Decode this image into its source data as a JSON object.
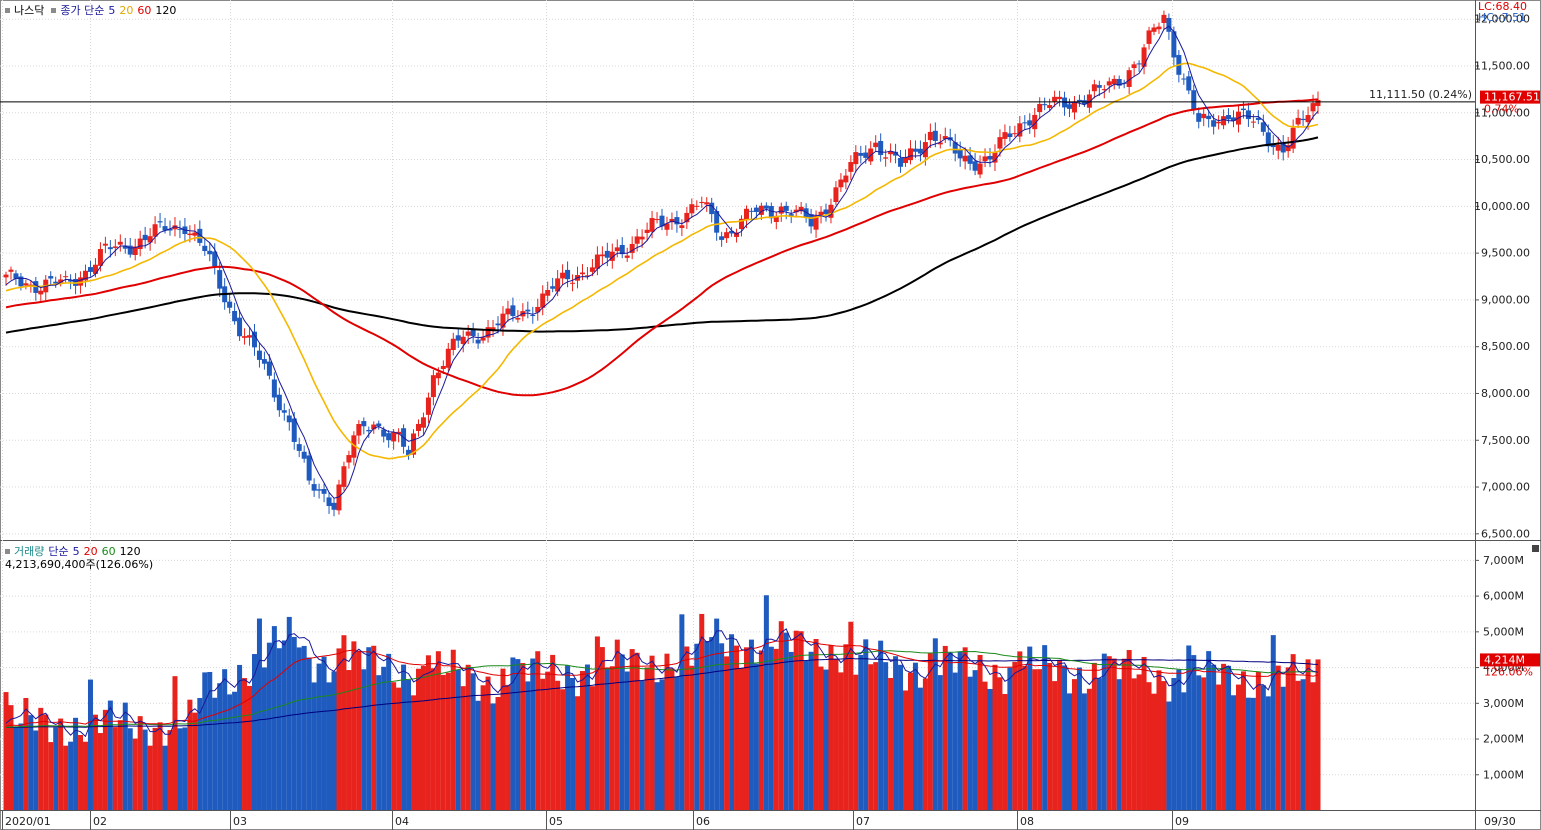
{
  "price_legend": {
    "symbol": "나스닥",
    "desc": "종가 단순",
    "p1": "5",
    "p2": "20",
    "p3": "60",
    "p4": "120"
  },
  "volume_legend": {
    "label": "거래량",
    "desc": "단순",
    "p1": "5",
    "p2": "20",
    "p3": "60",
    "p4": "120",
    "info": "4,213,690,400주(126.06%)"
  },
  "corner": {
    "lc": "LC:68.40",
    "hc": "HC:-7.51"
  },
  "right_end_label": "09/30",
  "colors": {
    "up": "#e8221c",
    "down": "#1f5bbf",
    "ma5": "#1a1a9c",
    "ma20": "#f5b800",
    "ma60": "#e00000",
    "ma120": "#000000",
    "vma5": "#1a1a9c",
    "vma20": "#e00000",
    "vma60": "#1a8a1a",
    "vma120": "#000080"
  },
  "chart_data": [
    {
      "type": "candlestick",
      "title": "나스닥",
      "y_ticks": [
        "12,000.00",
        "11,500.00",
        "11,000.00",
        "10,500.00",
        "10,000.00",
        "9,500.00",
        "9,000.00",
        "8,500.00",
        "8,000.00",
        "7,500.00",
        "7,000.00",
        "6,500.00"
      ],
      "ylim": [
        6450,
        12200
      ],
      "x_ticks": [
        "2020/01",
        "02",
        "03",
        "04",
        "05",
        "06",
        "07",
        "08",
        "09"
      ],
      "reference_line": {
        "value": 11111.5,
        "label": "11,111.50 (0.24%)"
      },
      "current_price": {
        "value": 11167.51,
        "label": "11,167.51",
        "pct_label": "0.74%"
      },
      "moving_averages": [
        "5",
        "20",
        "60",
        "120"
      ],
      "key_points": {
        "start_close": 9200,
        "feb_peak": 9820,
        "march_low": 6860,
        "april_low": 7300,
        "june_high": 10010,
        "july_high": 10800,
        "sept_high": 12050,
        "sept_low": 10600,
        "last_close": 11167.51
      }
    },
    {
      "type": "bar",
      "title": "거래량",
      "y_ticks": [
        "7,000M",
        "6,000M",
        "5,000M",
        "4,000M",
        "3,000M",
        "2,000M",
        "1,000M"
      ],
      "ylim": [
        0,
        7500
      ],
      "unit": "M",
      "current_volume": {
        "label": "4,214M",
        "pct_label": "126.06%"
      },
      "moving_averages": [
        "5",
        "20",
        "60",
        "120"
      ]
    }
  ]
}
